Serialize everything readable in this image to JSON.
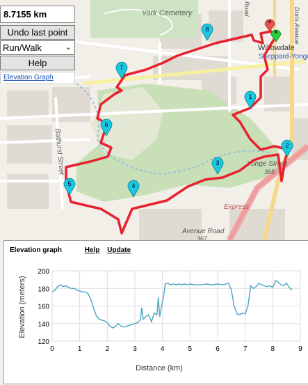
{
  "controls": {
    "distance": "8.7155 km",
    "undo_label": "Undo last point",
    "mode_value": "Run/Walk",
    "help_label": "Help",
    "elevation_link": "Elevation Graph"
  },
  "map": {
    "labels": {
      "cemetery": "York Cemetery",
      "willowdale": "Willowdale",
      "station": "Sheppard-Yonge",
      "yonge": "Yonge Street",
      "yonge_num": "365",
      "bathurst": "Bathurst Street",
      "avenue": "Avenue Road",
      "avenue_num": "367",
      "express": "Express",
      "road": "Road",
      "dors": "Doris Avenue"
    },
    "markers": [
      "1",
      "2",
      "3",
      "4",
      "5",
      "6",
      "7",
      "8"
    ],
    "colors": {
      "route": "#e8212e",
      "marker": "#1bc8e0",
      "start": "#2ecc40",
      "end": "#e8524a"
    }
  },
  "panel": {
    "title": "Elevation graph",
    "help": "Help",
    "update": "Update"
  },
  "chart_data": {
    "type": "line",
    "xlabel": "Distance (km)",
    "ylabel": "Elevation (meters)",
    "xlim": [
      0,
      9
    ],
    "ylim": [
      120,
      200
    ],
    "xticks": [
      "0",
      "1",
      "2",
      "3",
      "4",
      "5",
      "6",
      "7",
      "8",
      "9"
    ],
    "yticks": [
      "120",
      "140",
      "160",
      "180",
      "200"
    ],
    "color": "#4aa3c0",
    "series": [
      {
        "x": [
          0,
          0.1,
          0.2,
          0.3,
          0.4,
          0.5,
          0.6,
          0.7,
          0.8,
          0.9,
          1.0,
          1.1,
          1.2,
          1.3,
          1.4,
          1.5,
          1.6,
          1.7,
          1.8,
          1.9,
          2.0,
          2.1,
          2.2,
          2.3,
          2.4,
          2.5,
          2.6,
          2.7,
          2.8,
          2.9,
          3.0,
          3.1,
          3.2,
          3.25,
          3.3,
          3.4,
          3.5,
          3.6,
          3.7,
          3.8,
          3.85,
          3.9,
          4.0,
          4.05,
          4.1,
          4.2,
          4.3,
          4.4,
          4.5,
          4.6,
          4.7,
          4.8,
          4.9,
          5.0,
          5.2,
          5.4,
          5.6,
          5.8,
          6.0,
          6.2,
          6.4,
          6.5,
          6.6,
          6.7,
          6.8,
          6.9,
          7.0,
          7.1,
          7.2,
          7.3,
          7.4,
          7.5,
          7.6,
          7.7,
          7.8,
          7.9,
          8.0,
          8.1,
          8.2,
          8.3,
          8.4,
          8.5,
          8.6,
          8.7
        ],
        "y": [
          176,
          178,
          182,
          184,
          182,
          183,
          181,
          180,
          180,
          178,
          177,
          176,
          176,
          174,
          168,
          158,
          149,
          145,
          144,
          143,
          141,
          137,
          135,
          137,
          140,
          137,
          136,
          137,
          138,
          139,
          140,
          141,
          144,
          158,
          145,
          148,
          150,
          142,
          152,
          150,
          170,
          148,
          165,
          172,
          185,
          186,
          184,
          185,
          184,
          185,
          184,
          185,
          184,
          185,
          184,
          184,
          185,
          184,
          185,
          184,
          186,
          178,
          160,
          151,
          150,
          152,
          151,
          160,
          183,
          180,
          182,
          186,
          184,
          183,
          182,
          183,
          181,
          189,
          187,
          184,
          183,
          186,
          181,
          178
        ]
      }
    ]
  }
}
